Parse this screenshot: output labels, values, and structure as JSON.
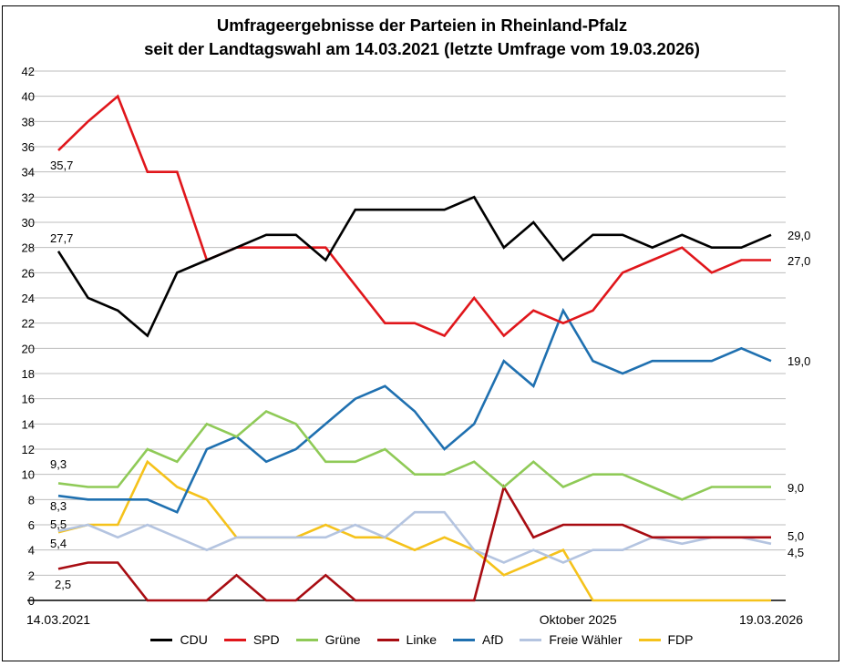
{
  "chart_data": {
    "type": "line",
    "title": "Umfrageergebnisse der Parteien in Rheinland-Pfalz",
    "subtitle": "seit der Landtagswahl am 14.03.2021 (letzte Umfrage vom 19.03.2026)",
    "xlabel": "",
    "ylabel": "",
    "ylim": [
      0,
      42
    ],
    "yticks": [
      "0",
      "2",
      "4",
      "6",
      "8",
      "10",
      "12",
      "14",
      "16",
      "18",
      "20",
      "22",
      "24",
      "26",
      "28",
      "30",
      "32",
      "34",
      "36",
      "38",
      "40",
      "42"
    ],
    "x_tick_labels": [
      {
        "index": 0,
        "label": "14.03.2021"
      },
      {
        "index": 17.5,
        "label": "Oktober 2025"
      },
      {
        "index": 24,
        "label": "19.03.2026"
      }
    ],
    "grid": true,
    "legend_position": "bottom",
    "n_points": 25,
    "series": [
      {
        "name": "CDU",
        "color": "#000000",
        "start_label": "27,7",
        "end_label": "29,0",
        "values": [
          27.7,
          24,
          23,
          21,
          26,
          27,
          28,
          29,
          29,
          27,
          31,
          31,
          31,
          31,
          32,
          28,
          30,
          27,
          29,
          29,
          28,
          29,
          28,
          28,
          29
        ]
      },
      {
        "name": "SPD",
        "color": "#e0161b",
        "start_label": "35,7",
        "end_label": "27,0",
        "values": [
          35.7,
          38,
          40,
          34,
          34,
          27,
          28,
          28,
          28,
          28,
          25,
          22,
          22,
          21,
          24,
          21,
          23,
          22,
          23,
          26,
          27,
          28,
          26,
          27,
          27
        ]
      },
      {
        "name": "Grüne",
        "color": "#8fca57",
        "start_label": "9,3",
        "end_label": "9,0",
        "values": [
          9.3,
          9,
          9,
          12,
          11,
          14,
          13,
          15,
          14,
          11,
          11,
          12,
          10,
          10,
          11,
          9,
          11,
          9,
          10,
          10,
          9,
          8,
          9,
          9,
          9
        ]
      },
      {
        "name": "Linke",
        "color": "#a80c12",
        "start_label": "2,5",
        "end_label": "5,0",
        "values": [
          2.5,
          3,
          3,
          0,
          0,
          0,
          2,
          0,
          0,
          2,
          0,
          0,
          0,
          0,
          0,
          9,
          5,
          6,
          6,
          6,
          5,
          5,
          5,
          5,
          5
        ]
      },
      {
        "name": "AfD",
        "color": "#1f70b0",
        "start_label": "8,3",
        "end_label": "19,0",
        "values": [
          8.3,
          8,
          8,
          8,
          7,
          12,
          13,
          11,
          12,
          14,
          16,
          17,
          15,
          12,
          14,
          19,
          17,
          23,
          19,
          18,
          19,
          19,
          19,
          20,
          19
        ]
      },
      {
        "name": "Freie Wähler",
        "color": "#b4c4e0",
        "start_label": "5,5",
        "end_label": "4,5",
        "values": [
          5.5,
          6,
          5,
          6,
          5,
          4,
          5,
          5,
          5,
          5,
          6,
          5,
          7,
          7,
          4,
          3,
          4,
          3,
          4,
          4,
          5,
          4.5,
          5,
          5,
          4.5
        ]
      },
      {
        "name": "FDP",
        "color": "#f5c21b",
        "start_label": "5,4",
        "end_label": "",
        "values": [
          5.4,
          6,
          6,
          11,
          9,
          8,
          5,
          5,
          5,
          6,
          5,
          5,
          4,
          5,
          4,
          2,
          3,
          4,
          0,
          0,
          0,
          0,
          0,
          0,
          0
        ]
      }
    ]
  }
}
